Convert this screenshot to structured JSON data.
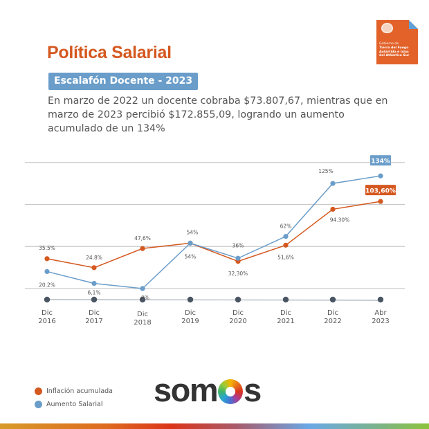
{
  "header": {
    "title": "Política Salarial",
    "subtitle": "Escalafón Docente - 2023",
    "description": "En marzo de 2022 un docente cobraba $73.807,67, mientras que en marzo de 2023 percibió $172.855,09, logrando un aumento acumulado de un 134%"
  },
  "logo": {
    "icon": "provincial-crest-icon",
    "line1": "Gobierno de",
    "line2": "Tierra del Fuego",
    "line3": "Antártida e Islas",
    "line4": "del Atlántico Sur",
    "color": "#e2622a"
  },
  "legend": {
    "items": [
      {
        "label": "Inflación acumulada",
        "color": "#d4581f"
      },
      {
        "label": "Aumento Salarial",
        "color": "#6a9dc9"
      }
    ]
  },
  "brand": {
    "text_before": "som",
    "text_after": "s"
  },
  "chart_data": {
    "type": "line",
    "title": "",
    "xlabel": "",
    "ylabel": "",
    "ylim": [
      0,
      150
    ],
    "grid": true,
    "gridlines": [
      0,
      50,
      100,
      150
    ],
    "legend_position": "bottom-left",
    "categories": [
      {
        "top": "Dic",
        "bottom": "2016"
      },
      {
        "top": "Dic",
        "bottom": "2017"
      },
      {
        "top": "Dic",
        "bottom": "2018"
      },
      {
        "top": "Dic",
        "bottom": "2019"
      },
      {
        "top": "Dic",
        "bottom": "2020"
      },
      {
        "top": "Dic",
        "bottom": "2021"
      },
      {
        "top": "Dic",
        "bottom": "2022"
      },
      {
        "top": "Abr",
        "bottom": "2023"
      }
    ],
    "series": [
      {
        "name": "Inflación acumulada",
        "color": "#d4581f",
        "values": [
          35.5,
          24.8,
          47.6,
          54,
          32.3,
          51.6,
          94.3,
          103.6
        ],
        "labels": [
          "35.5%",
          "24.8%",
          "47,6%",
          "54%",
          "32,30%",
          "51,6%",
          "94.30%",
          "103,60%"
        ]
      },
      {
        "name": "Aumento Salarial",
        "color": "#6a9dc9",
        "values": [
          20.2,
          6.1,
          0,
          54,
          36,
          62,
          125,
          134
        ],
        "labels": [
          "20.2%",
          "6,1%",
          "0%",
          "54%",
          "36%",
          "62%",
          "125%",
          "134%"
        ]
      }
    ],
    "timeline_color": "#4a5563"
  }
}
